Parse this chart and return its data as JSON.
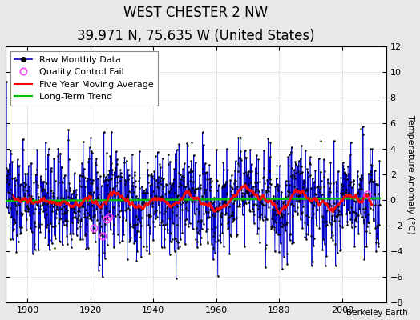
{
  "title": "WEST CHESTER 2 NW",
  "subtitle": "39.971 N, 75.635 W (United States)",
  "ylabel": "Temperature Anomaly (°C)",
  "attribution": "Berkeley Earth",
  "xlim": [
    1893,
    2014
  ],
  "ylim": [
    -8,
    12
  ],
  "yticks": [
    -8,
    -6,
    -4,
    -2,
    0,
    2,
    4,
    6,
    8,
    10,
    12
  ],
  "xticks": [
    1900,
    1920,
    1940,
    1960,
    1980,
    2000
  ],
  "start_year": 1893,
  "end_year": 2011,
  "stem_color": "#aaaaff",
  "line_color": "#0000cc",
  "dot_color": "#000000",
  "moving_avg_color": "#ff0000",
  "trend_color": "#00bb00",
  "qc_color": "#ff44ff",
  "background_color": "#e8e8e8",
  "plot_bg_color": "#ffffff",
  "title_fontsize": 12,
  "subtitle_fontsize": 9,
  "axis_label_fontsize": 8,
  "tick_fontsize": 8,
  "legend_fontsize": 8
}
